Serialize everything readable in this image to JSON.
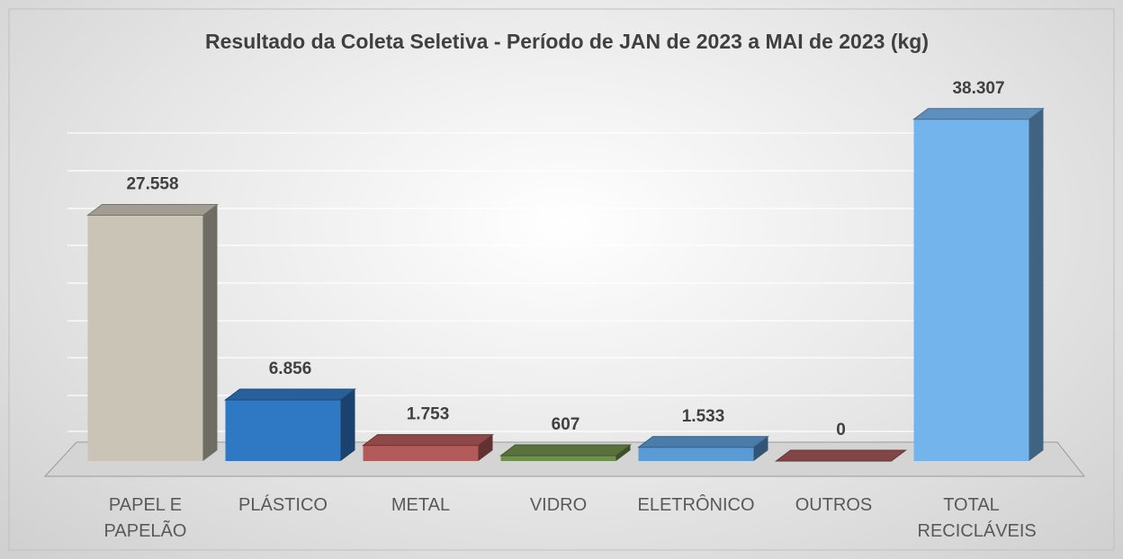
{
  "chart_data": {
    "type": "bar3d",
    "title": "Resultado da Coleta Seletiva - Período de JAN de 2023 a MAI de 2023 (kg)",
    "categories": [
      "PAPEL E PAPELÃO",
      "PLÁSTICO",
      "METAL",
      "VIDRO",
      "ELETRÔNICO",
      "OUTROS",
      "TOTAL RECICLÁVEIS"
    ],
    "values": [
      27558,
      6856,
      1753,
      607,
      1533,
      0,
      38307
    ],
    "value_labels": [
      "27.558",
      "6.856",
      "1.753",
      "607",
      "1.533",
      "0",
      "38.307"
    ],
    "colors": [
      "#c9c4b6",
      "#2f78c4",
      "#b35a5a",
      "#6f8f4c",
      "#5b9bd5",
      "#a35858",
      "#74b4ec"
    ],
    "ylim": [
      0,
      40000
    ]
  }
}
